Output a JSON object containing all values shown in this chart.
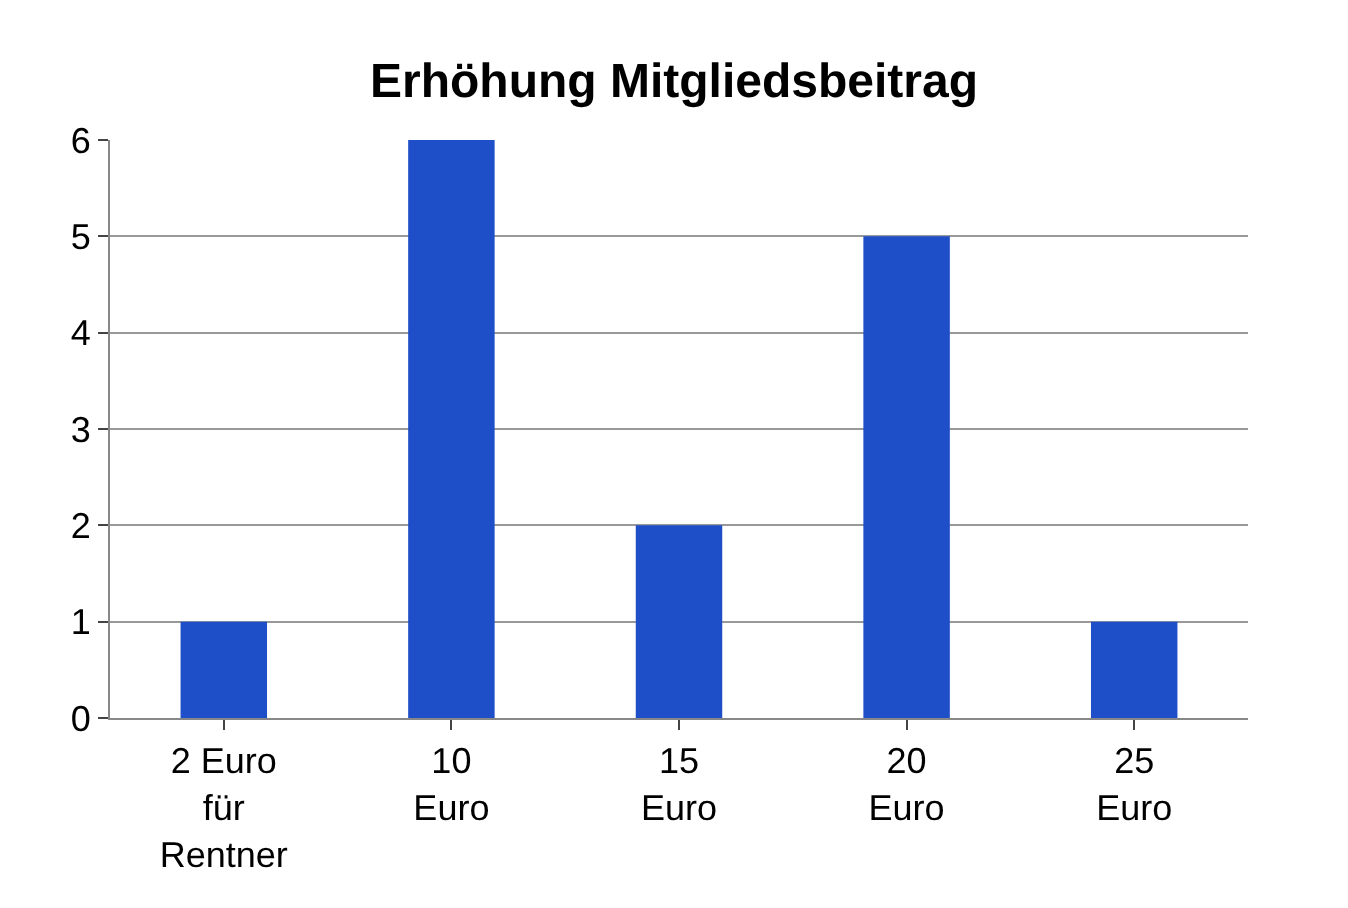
{
  "chart_data": {
    "type": "bar",
    "title": "Erhöhung Mitgliedsbeitrag",
    "categories": [
      "2 Euro für Rentner",
      "10 Euro",
      "15 Euro",
      "20 Euro",
      "25 Euro"
    ],
    "values": [
      1,
      6,
      2,
      5,
      1
    ],
    "color": "#1f4fc8",
    "ylim": [
      0,
      6
    ],
    "yticks": [
      0,
      1,
      2,
      3,
      4,
      5,
      6
    ],
    "grid": "y",
    "legend": false
  }
}
